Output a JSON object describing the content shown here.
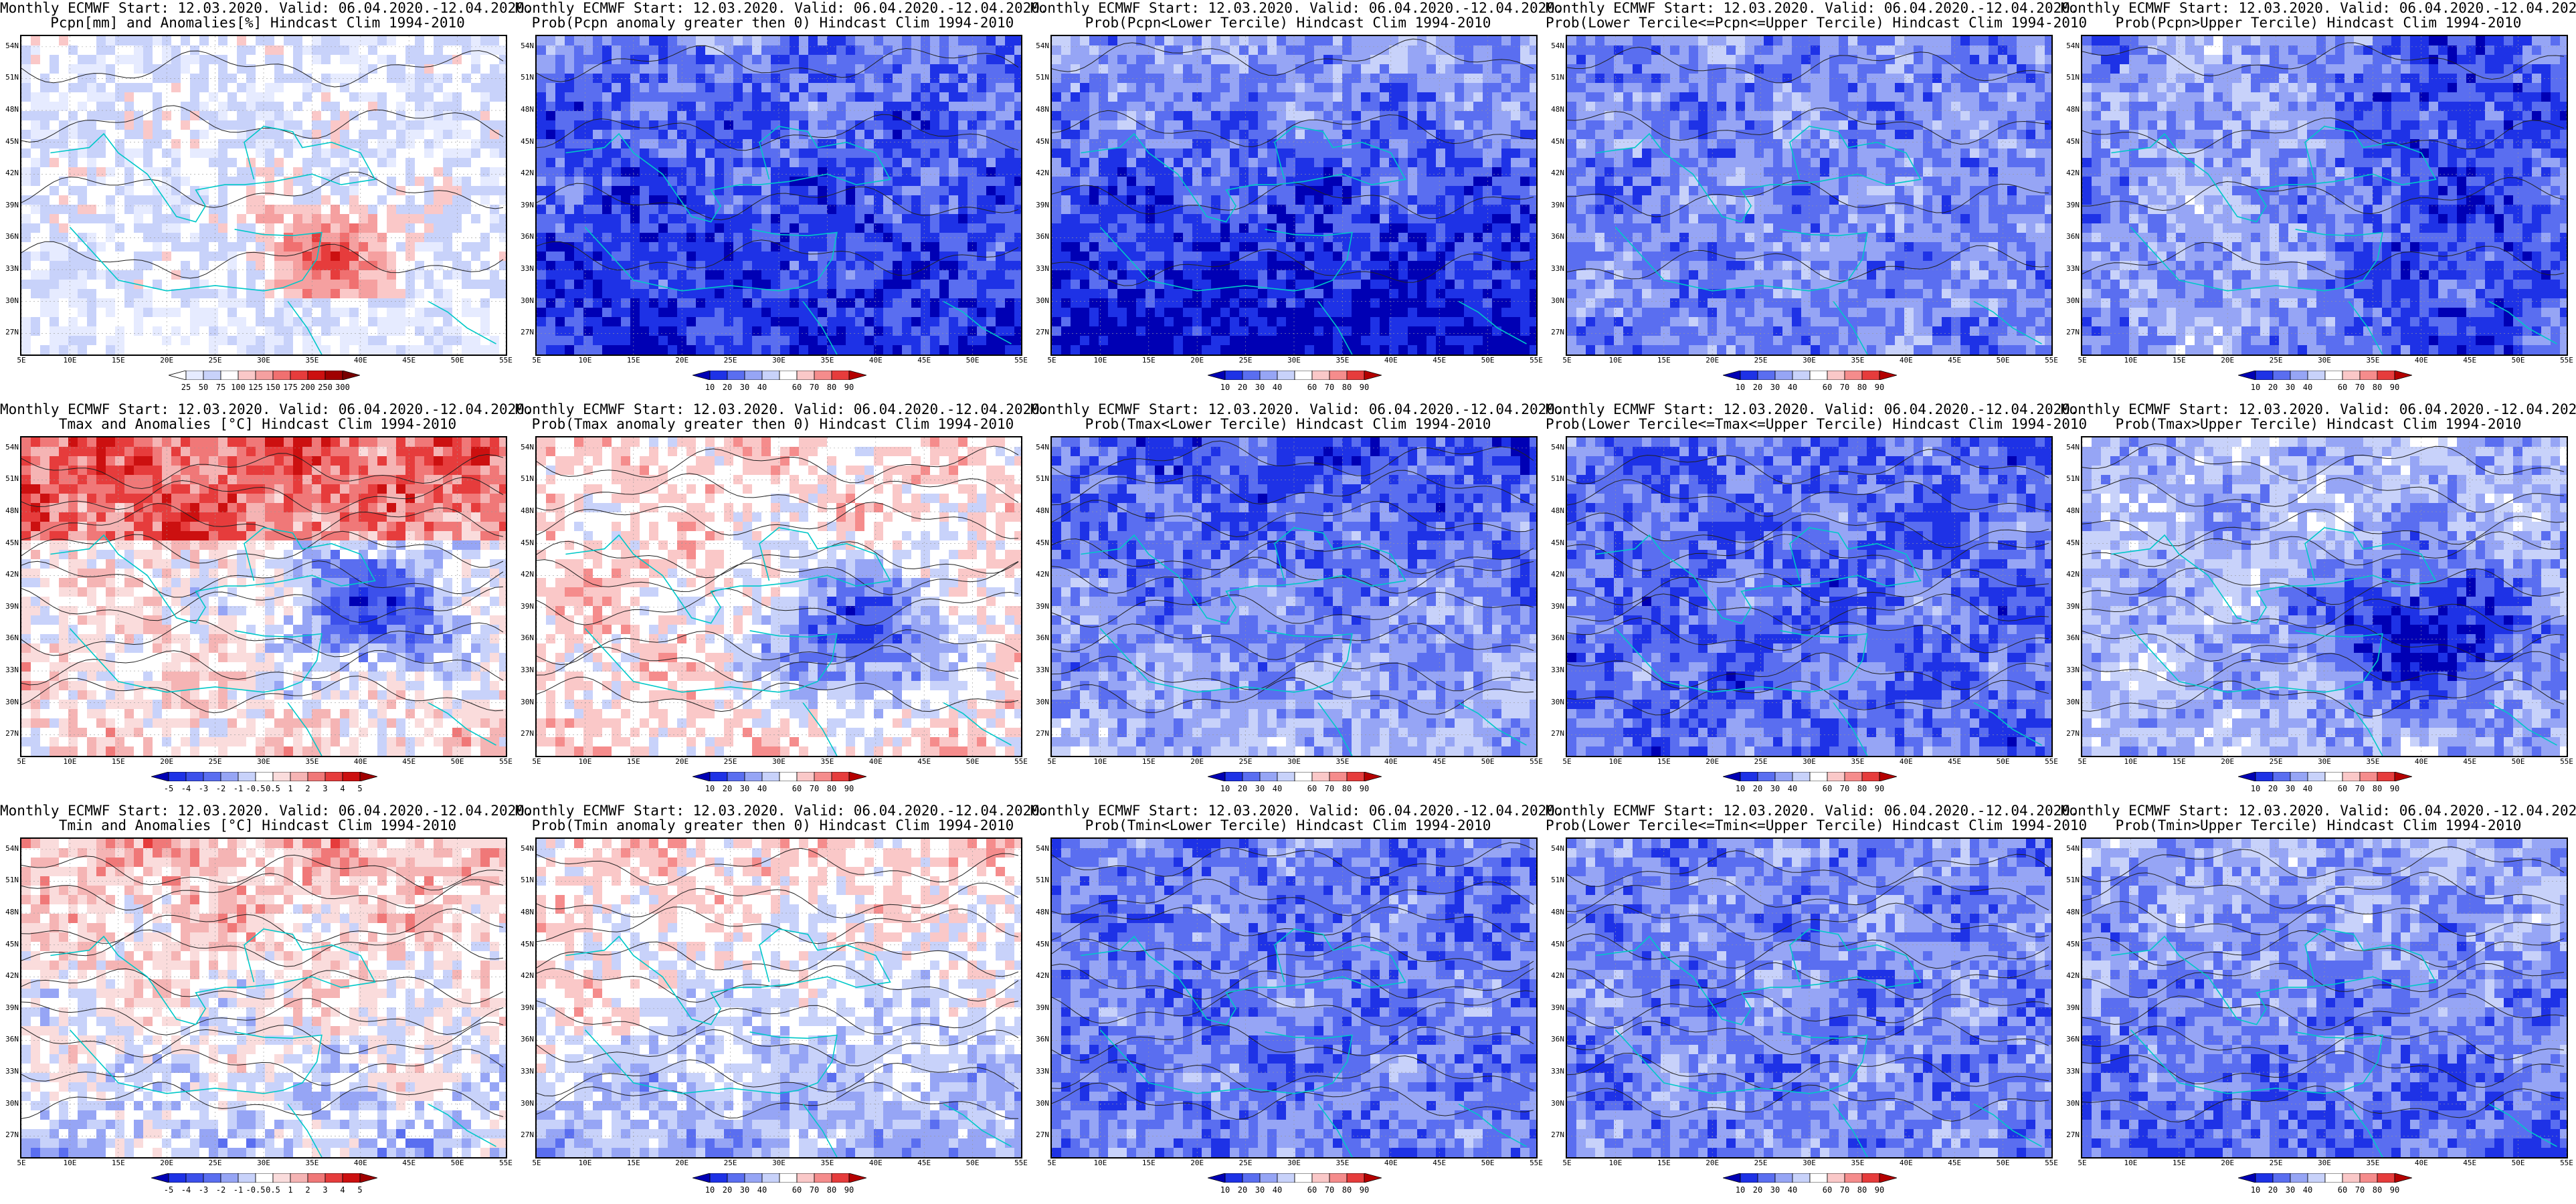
{
  "figure": {
    "title_line1": "Monthly ECMWF Start: 12.03.2020. Valid: 06.04.2020.-12.04.2020.",
    "panels": [
      {
        "subtitle": "Pcpn[mm] and Anomalies[%] Hindcast Clim 1994-2010",
        "scale": "anom_pcpn",
        "field": "pcpn_anom"
      },
      {
        "subtitle": "Prob(Pcpn anomaly greater then 0) Hindcast Clim 1994-2010",
        "scale": "prob",
        "field": "pcpn_pos"
      },
      {
        "subtitle": "Prob(Pcpn<Lower Tercile) Hindcast Clim 1994-2010",
        "scale": "prob",
        "field": "pcpn_low"
      },
      {
        "subtitle": "Prob(Lower Tercile<=Pcpn<=Upper Tercile) Hindcast Clim 1994-2010",
        "scale": "prob",
        "field": "pcpn_mid"
      },
      {
        "subtitle": "Prob(Pcpn>Upper Tercile) Hindcast Clim 1994-2010",
        "scale": "prob",
        "field": "pcpn_up"
      },
      {
        "subtitle": "Tmax and Anomalies [°C] Hindcast Clim 1994-2010",
        "scale": "anom_temp",
        "field": "tmax_anom"
      },
      {
        "subtitle": "Prob(Tmax anomaly greater then 0) Hindcast Clim 1994-2010",
        "scale": "prob",
        "field": "tmax_pos"
      },
      {
        "subtitle": "Prob(Tmax<Lower Tercile) Hindcast Clim 1994-2010",
        "scale": "prob",
        "field": "tmax_low"
      },
      {
        "subtitle": "Prob(Lower Tercile<=Tmax<=Upper Tercile) Hindcast Clim 1994-2010",
        "scale": "prob",
        "field": "tmax_mid"
      },
      {
        "subtitle": "Prob(Tmax>Upper Tercile) Hindcast Clim 1994-2010",
        "scale": "prob",
        "field": "tmax_up"
      },
      {
        "subtitle": "Tmin and Anomalies [°C] Hindcast Clim 1994-2010",
        "scale": "anom_temp",
        "field": "tmin_anom"
      },
      {
        "subtitle": "Prob(Tmin anomaly greater then 0) Hindcast Clim 1994-2010",
        "scale": "prob",
        "field": "tmin_pos"
      },
      {
        "subtitle": "Prob(Tmin<Lower Tercile) Hindcast Clim 1994-2010",
        "scale": "prob",
        "field": "tmin_low"
      },
      {
        "subtitle": "Prob(Lower Tercile<=Tmin<=Upper Tercile) Hindcast Clim 1994-2010",
        "scale": "prob",
        "field": "tmin_mid"
      },
      {
        "subtitle": "Prob(Tmin>Upper Tercile) Hindcast Clim 1994-2010",
        "scale": "prob",
        "field": "tmin_up"
      }
    ],
    "lat_labels": [
      "54N",
      "51N",
      "48N",
      "45N",
      "42N",
      "39N",
      "36N",
      "33N",
      "30N",
      "27N"
    ],
    "lat_values": [
      54,
      51,
      48,
      45,
      42,
      39,
      36,
      33,
      30,
      27
    ],
    "lon_labels": [
      "5E",
      "10E",
      "15E",
      "20E",
      "25E",
      "30E",
      "35E",
      "40E",
      "45E",
      "50E",
      "55E"
    ],
    "lon_values": [
      5,
      10,
      15,
      20,
      25,
      30,
      35,
      40,
      45,
      50,
      55
    ],
    "lon_range": [
      5,
      55
    ],
    "lat_range": [
      25,
      55
    ],
    "scales": {
      "prob": {
        "labels": [
          "10",
          "20",
          "30",
          "40",
          "60",
          "70",
          "80",
          "90"
        ],
        "colors": [
          "#0000b4",
          "#1e32e6",
          "#5a6ef0",
          "#96a5f5",
          "#c8d2fa",
          "#ffffff",
          "#fac8c8",
          "#f58c8c",
          "#e63c3c",
          "#b40000"
        ]
      },
      "anom_pcpn": {
        "labels": [
          "25",
          "50",
          "75",
          "100",
          "125",
          "150",
          "175",
          "200",
          "250",
          "300"
        ],
        "colors": [
          "#ffffff",
          "#e6ebff",
          "#c8d2fa",
          "#ffffff",
          "#fac8c8",
          "#f5a0a0",
          "#f07070",
          "#e63c3c",
          "#cc1010",
          "#a00000",
          "#780000"
        ]
      },
      "anom_temp": {
        "labels": [
          "-5",
          "-4",
          "-3",
          "-2",
          "-1",
          "-0.5",
          "0.5",
          "1",
          "2",
          "3",
          "4",
          "5"
        ],
        "colors": [
          "#0000b4",
          "#1e32e6",
          "#3c50eb",
          "#5a6ef0",
          "#96a5f5",
          "#c8d2fa",
          "#ffffff",
          "#fadcdc",
          "#f5b4b4",
          "#f07878",
          "#e63c3c",
          "#cc1010",
          "#a00000"
        ]
      }
    }
  }
}
